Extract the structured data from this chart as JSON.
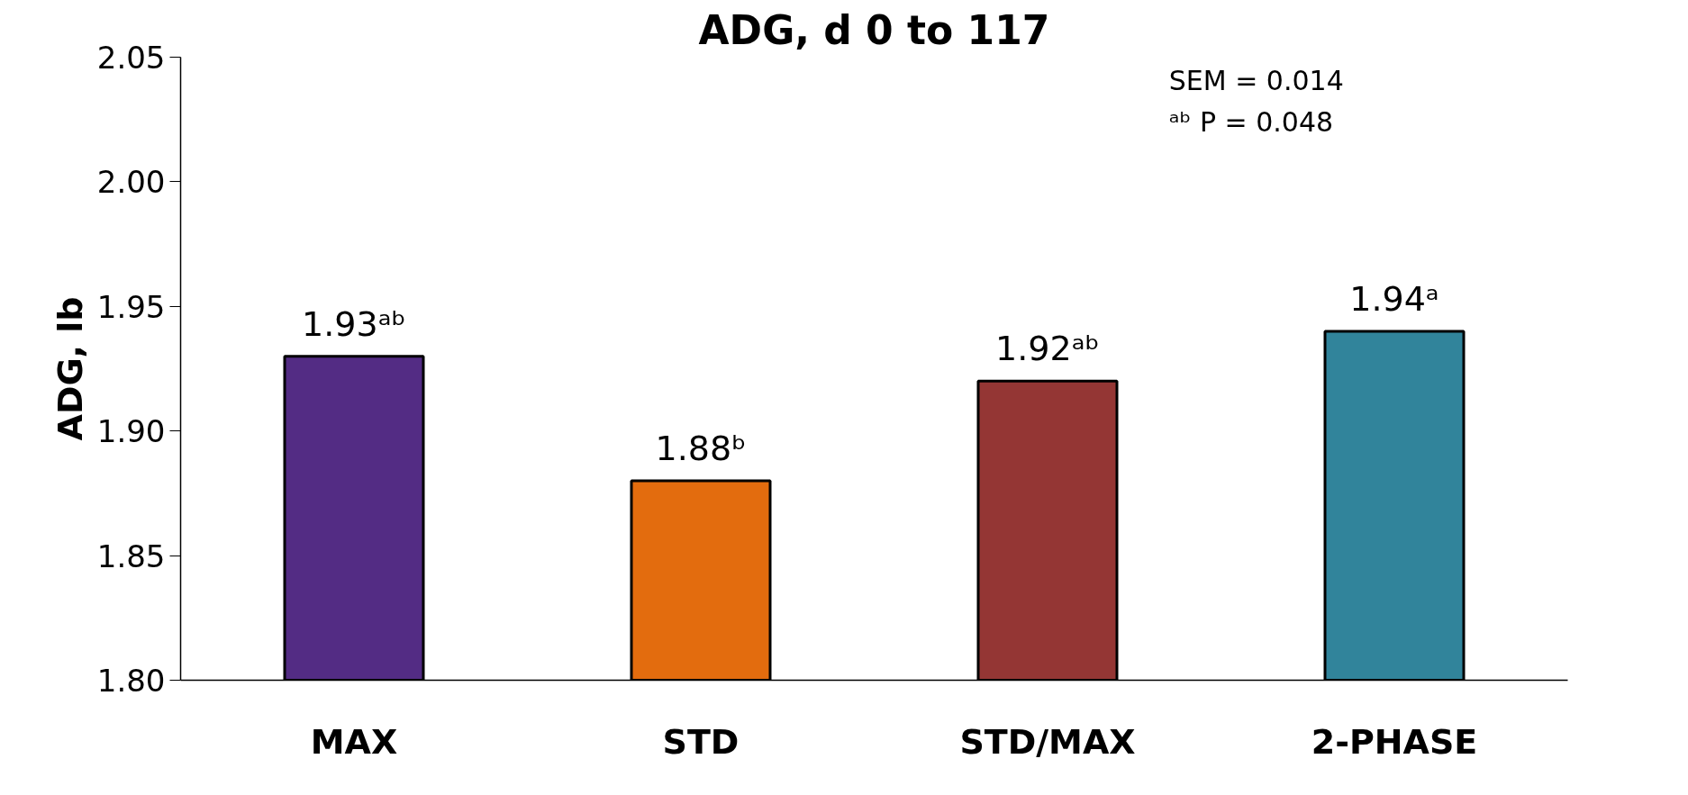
{
  "chart_data": {
    "type": "bar",
    "title": "ADG, d 0 to 117",
    "ylabel": "ADG, lb",
    "categories": [
      "MAX",
      "STD",
      "STD/MAX",
      "2-PHASE"
    ],
    "values": [
      1.93,
      1.88,
      1.92,
      1.94
    ],
    "colors": [
      "#532c84",
      "#e36c0e",
      "#943634",
      "#31849b"
    ],
    "value_labels": [
      "1.93ᵃᵇ",
      "1.88ᵇ",
      "1.92ᵃᵇ",
      "1.94ᵃ"
    ],
    "ylim": [
      1.8,
      2.05
    ],
    "yticks": [
      {
        "value": 1.8,
        "label": "1.80"
      },
      {
        "value": 1.85,
        "label": "1.85"
      },
      {
        "value": 1.9,
        "label": "1.90"
      },
      {
        "value": 1.95,
        "label": "1.95"
      },
      {
        "value": 2.0,
        "label": "2.00"
      },
      {
        "value": 2.05,
        "label": "2.05"
      }
    ],
    "annotations": [
      "SEM = 0.014",
      "ᵃᵇ P = 0.048"
    ],
    "grid": false
  }
}
